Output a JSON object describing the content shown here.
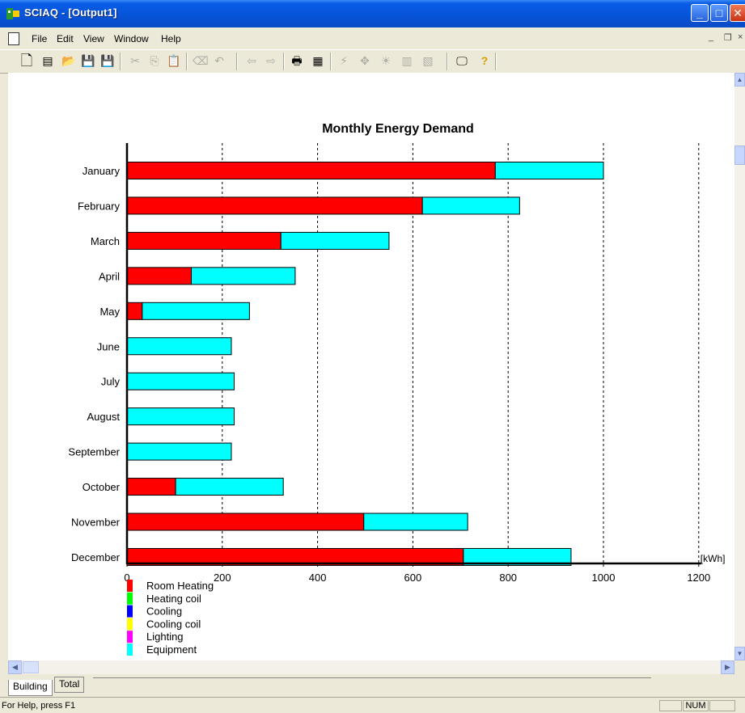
{
  "window": {
    "title": "SCIAQ - [Output1]",
    "app_icon": "sciaq-app-icon",
    "controls": {
      "minimize": "_",
      "maximize": "□",
      "close": "✕"
    }
  },
  "menubar": {
    "items": [
      "File",
      "Edit",
      "View",
      "Window",
      "Help"
    ],
    "mdi_controls": {
      "minimize": "_",
      "restore": "❐",
      "close": "×"
    }
  },
  "toolbar": {
    "buttons": [
      {
        "icon": "new-document-icon",
        "glyph": "🗋",
        "enabled": true
      },
      {
        "icon": "properties-icon",
        "glyph": "▤",
        "enabled": true
      },
      {
        "icon": "open-folder-icon",
        "glyph": "📂",
        "enabled": true
      },
      {
        "icon": "save-icon",
        "glyph": "💾",
        "enabled": true
      },
      {
        "icon": "save-as-icon",
        "glyph": "💾",
        "enabled": true
      },
      {
        "icon": "cut-icon",
        "glyph": "✂",
        "enabled": false
      },
      {
        "icon": "copy-icon",
        "glyph": "⎘",
        "enabled": false
      },
      {
        "icon": "paste-icon",
        "glyph": "📋",
        "enabled": false
      },
      {
        "icon": "clear-icon",
        "glyph": "⌫",
        "enabled": false
      },
      {
        "icon": "undo-icon",
        "glyph": "↶",
        "enabled": false
      },
      {
        "icon": "back-icon",
        "glyph": "⇦",
        "enabled": false
      },
      {
        "icon": "forward-icon",
        "glyph": "⇨",
        "enabled": false
      },
      {
        "icon": "print-icon",
        "glyph": "🖶",
        "enabled": true
      },
      {
        "icon": "calculator-icon",
        "glyph": "▦",
        "enabled": true
      },
      {
        "icon": "lightning-icon",
        "glyph": "⚡",
        "enabled": false
      },
      {
        "icon": "crosshair-icon",
        "glyph": "✥",
        "enabled": false
      },
      {
        "icon": "sun-icon",
        "glyph": "☀",
        "enabled": false
      },
      {
        "icon": "building-icon",
        "glyph": "▥",
        "enabled": false
      },
      {
        "icon": "grid-icon",
        "glyph": "▧",
        "enabled": false
      },
      {
        "icon": "monitor-icon",
        "glyph": "🖵",
        "enabled": true
      },
      {
        "icon": "help-icon",
        "glyph": "?",
        "enabled": true
      }
    ]
  },
  "chart_data": {
    "type": "bar",
    "orientation": "horizontal",
    "stacked": true,
    "title": "Monthly Energy Demand",
    "xlabel": "[kWh]",
    "xlim": [
      0,
      1200
    ],
    "xticks": [
      0,
      200,
      400,
      600,
      800,
      1000,
      1200
    ],
    "grid": "vertical dotted",
    "categories": [
      "January",
      "February",
      "March",
      "April",
      "May",
      "June",
      "July",
      "August",
      "September",
      "October",
      "November",
      "December"
    ],
    "series": [
      {
        "name": "Room Heating",
        "color": "#ff0000",
        "values": [
          773,
          620,
          323,
          135,
          32,
          0,
          0,
          0,
          0,
          102,
          497,
          706
        ]
      },
      {
        "name": "Heating coil",
        "color": "#00ff00",
        "values": [
          0,
          0,
          0,
          0,
          0,
          0,
          0,
          0,
          0,
          0,
          0,
          0
        ]
      },
      {
        "name": "Cooling",
        "color": "#0000ff",
        "values": [
          0,
          0,
          0,
          0,
          0,
          0,
          0,
          0,
          0,
          0,
          0,
          0
        ]
      },
      {
        "name": "Cooling coil",
        "color": "#ffff00",
        "values": [
          0,
          0,
          0,
          0,
          0,
          0,
          0,
          0,
          0,
          0,
          0,
          0
        ]
      },
      {
        "name": "Lighting",
        "color": "#ff00ff",
        "values": [
          0,
          0,
          0,
          0,
          0,
          0,
          0,
          0,
          0,
          0,
          0,
          0
        ]
      },
      {
        "name": "Equipment",
        "color": "#00ffff",
        "values": [
          227,
          204,
          227,
          218,
          225,
          219,
          225,
          225,
          219,
          226,
          218,
          226
        ]
      }
    ],
    "legend": "bottom-left"
  },
  "tabs": {
    "items": [
      {
        "label": "Building",
        "active": true
      },
      {
        "label": "Total",
        "active": false
      }
    ]
  },
  "statusbar": {
    "text": "For Help, press F1",
    "num": "NUM"
  }
}
